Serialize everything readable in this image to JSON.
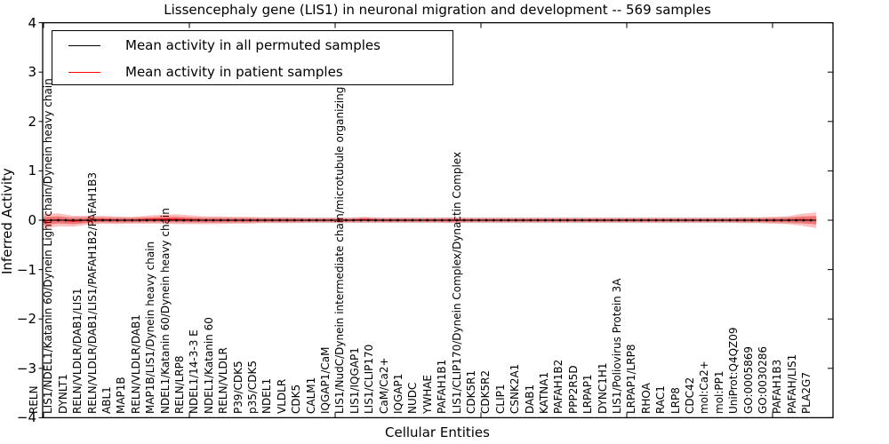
{
  "title": "Lissencephaly gene (LIS1) in neuronal migration and development -- 569 samples",
  "axes": {
    "xlabel": "Cellular Entities",
    "ylabel": "Inferred Activity",
    "yticks": [
      "4",
      "3",
      "2",
      "1",
      "0",
      "−1",
      "−2",
      "−3",
      "−4"
    ],
    "ylim": [
      -4,
      4
    ]
  },
  "legend": {
    "entries": [
      {
        "label": "Mean activity in all permuted samples",
        "color": "#000000"
      },
      {
        "label": "Mean activity in patient samples",
        "color": "#ff0000"
      }
    ]
  },
  "chart_data": {
    "type": "line",
    "title": "Lissencephaly gene (LIS1) in neuronal migration and development -- 569 samples",
    "xlabel": "Cellular Entities",
    "ylabel": "Inferred Activity",
    "ylim": [
      -4,
      4
    ],
    "grid": false,
    "legend_position": "upper left",
    "xticks_every": 10,
    "categories": [
      "RELN",
      "LIS1/NDEL1/Katanin 60/Dynein Light chain/Dynein heavy chain",
      "DYNLT1",
      "RELN/VLDLR/DAB1/LIS1",
      "RELN/VLDLR/DAB1/LIS1/PAFAH1B2/PAFAH1B3",
      "ABL1",
      "MAP1B",
      "RELN/VLDLR/DAB1",
      "MAP1B/LIS1/Dynein heavy chain",
      "NDEL1/Katanin 60/Dynein heavy chain",
      "RELN/LRP8",
      "NDEL1/14-3-3 E",
      "NDEL1/Katanin 60",
      "RELN/VLDLR",
      "P39/CDK5",
      "p35/CDK5",
      "NDEL1",
      "VLDLR",
      "CDK5",
      "CALM1",
      "IQGAP1/CaM",
      "LIS1/NudC/Dynein intermediate chain/microtubule organizing center",
      "LIS1/IQGAP1",
      "LIS1/CLIP170",
      "CaM/Ca2+",
      "IQGAP1",
      "NUDC",
      "YWHAE",
      "PAFAH1B1",
      "LIS1/CLIP170/Dynein Complex/Dynactin Complex",
      "CDK5R1",
      "CDK5R2",
      "CLIP1",
      "CSNK2A1",
      "DAB1",
      "KATNA1",
      "PAFAH1B2",
      "PPP2R5D",
      "LRPAP1",
      "DYNC1H1",
      "LIS1/Poliovirus Protein 3A",
      "LRPAP1/LRP8",
      "RHOA",
      "RAC1",
      "LRP8",
      "CDC42",
      "mol:Ca2+",
      "mol:PP1",
      "UniProt:Q4QZ09",
      "GO:0005869",
      "GO:0030286",
      "PAFAH1B3",
      "PAFAH/LIS1",
      "PLA2G7"
    ],
    "series": [
      {
        "name": "Mean activity in all permuted samples",
        "color": "#000000",
        "band_color": "#999999",
        "values": [
          0,
          0,
          0,
          0,
          0,
          0,
          0,
          0,
          0,
          0,
          0,
          0,
          0,
          0,
          0,
          0,
          0,
          0,
          0,
          0,
          0,
          0,
          0,
          0,
          0,
          0,
          0,
          0,
          0,
          0,
          0,
          0,
          0,
          0,
          0,
          0,
          0,
          0,
          0,
          0,
          0,
          0,
          0,
          0,
          0,
          0,
          0,
          0,
          0,
          0,
          0,
          0,
          0,
          0
        ],
        "band_halfwidth": [
          0.08,
          0.07,
          0.07,
          0.07,
          0.06,
          0.06,
          0.06,
          0.06,
          0.06,
          0.06,
          0.06,
          0.06,
          0.06,
          0.06,
          0.06,
          0.06,
          0.06,
          0.06,
          0.06,
          0.06,
          0.06,
          0.06,
          0.06,
          0.06,
          0.06,
          0.06,
          0.06,
          0.06,
          0.06,
          0.06,
          0.06,
          0.06,
          0.06,
          0.06,
          0.06,
          0.06,
          0.06,
          0.06,
          0.06,
          0.06,
          0.06,
          0.06,
          0.06,
          0.06,
          0.06,
          0.06,
          0.06,
          0.06,
          0.06,
          0.06,
          0.06,
          0.07,
          0.07,
          0.08
        ]
      },
      {
        "name": "Mean activity in patient samples",
        "color": "#ff0000",
        "band_color": "#ff0000",
        "values": [
          -0.02,
          0.01,
          -0.02,
          0,
          0.01,
          0,
          0,
          0.01,
          0.02,
          0.02,
          0.01,
          0,
          0,
          0,
          0,
          0,
          0,
          0,
          0,
          0,
          0,
          0,
          0.01,
          0,
          0,
          0,
          0,
          0,
          0,
          0,
          0,
          0,
          0,
          0,
          0,
          0,
          0,
          0,
          0,
          0,
          0,
          0,
          0,
          0,
          0,
          0,
          0,
          0,
          0,
          0,
          0,
          0,
          0.01,
          0
        ],
        "band_halfwidth": [
          0.15,
          0.13,
          0.11,
          0.09,
          0.08,
          0.08,
          0.07,
          0.08,
          0.09,
          0.1,
          0.09,
          0.08,
          0.08,
          0.07,
          0.07,
          0.06,
          0.06,
          0.06,
          0.05,
          0.05,
          0.05,
          0.05,
          0.06,
          0.05,
          0.05,
          0.05,
          0.05,
          0.05,
          0.06,
          0.05,
          0.05,
          0.05,
          0.05,
          0.05,
          0.05,
          0.05,
          0.05,
          0.05,
          0.05,
          0.05,
          0.05,
          0.05,
          0.05,
          0.05,
          0.05,
          0.05,
          0.05,
          0.05,
          0.06,
          0.06,
          0.07,
          0.08,
          0.12,
          0.16
        ]
      }
    ]
  }
}
